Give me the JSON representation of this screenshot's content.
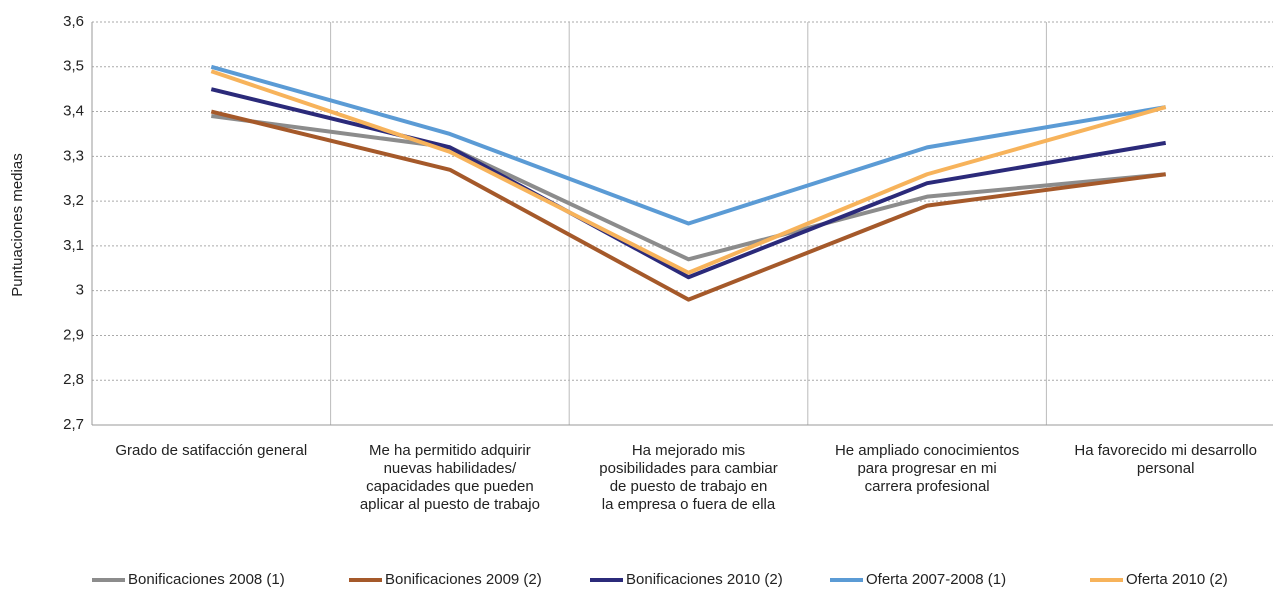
{
  "chart_data": {
    "type": "line",
    "y_label": "Puntuaciones medias",
    "categories": [
      "Grado de satifacción general",
      "Me ha permitido adquirir\nnuevas habilidades/\ncapacidades que pueden\naplicar al puesto de trabajo",
      "Ha mejorado mis\nposibilidades para cambiar\nde puesto de trabajo en\nla empresa o fuera de ella",
      "He ampliado conocimientos\npara progresar en mi\ncarrera profesional",
      "Ha favorecido mi desarrollo\npersonal"
    ],
    "series": [
      {
        "name": "Bonificaciones 2008 (1)",
        "color": "#8c8c8c",
        "values": [
          3.39,
          3.32,
          3.07,
          3.21,
          3.26
        ]
      },
      {
        "name": "Bonificaciones 2009 (2)",
        "color": "#a5592a",
        "values": [
          3.4,
          3.27,
          2.98,
          3.19,
          3.26
        ]
      },
      {
        "name": "Bonificaciones 2010 (2)",
        "color": "#2b2a7a",
        "values": [
          3.45,
          3.32,
          3.03,
          3.24,
          3.33
        ]
      },
      {
        "name": "Oferta 2007-2008 (1)",
        "color": "#5b9bd5",
        "values": [
          3.5,
          3.35,
          3.15,
          3.32,
          3.41
        ]
      },
      {
        "name": "Oferta 2010 (2)",
        "color": "#f7b35b",
        "values": [
          3.49,
          3.31,
          3.04,
          3.26,
          3.41
        ]
      }
    ],
    "ylim": [
      2.7,
      3.6
    ],
    "yticks": [
      {
        "value": 2.7,
        "label": "2,7"
      },
      {
        "value": 2.8,
        "label": "2,8"
      },
      {
        "value": 2.9,
        "label": "2,9"
      },
      3,
      {
        "value": 3.1,
        "label": "3,1"
      },
      {
        "value": 3.2,
        "label": "3,2"
      },
      {
        "value": 3.3,
        "label": "3,3"
      },
      {
        "value": 3.4,
        "label": "3,4"
      },
      {
        "value": 3.5,
        "label": "3,5"
      },
      {
        "value": 3.6,
        "label": "3,6"
      }
    ],
    "grid": true,
    "legend": "bottom"
  }
}
